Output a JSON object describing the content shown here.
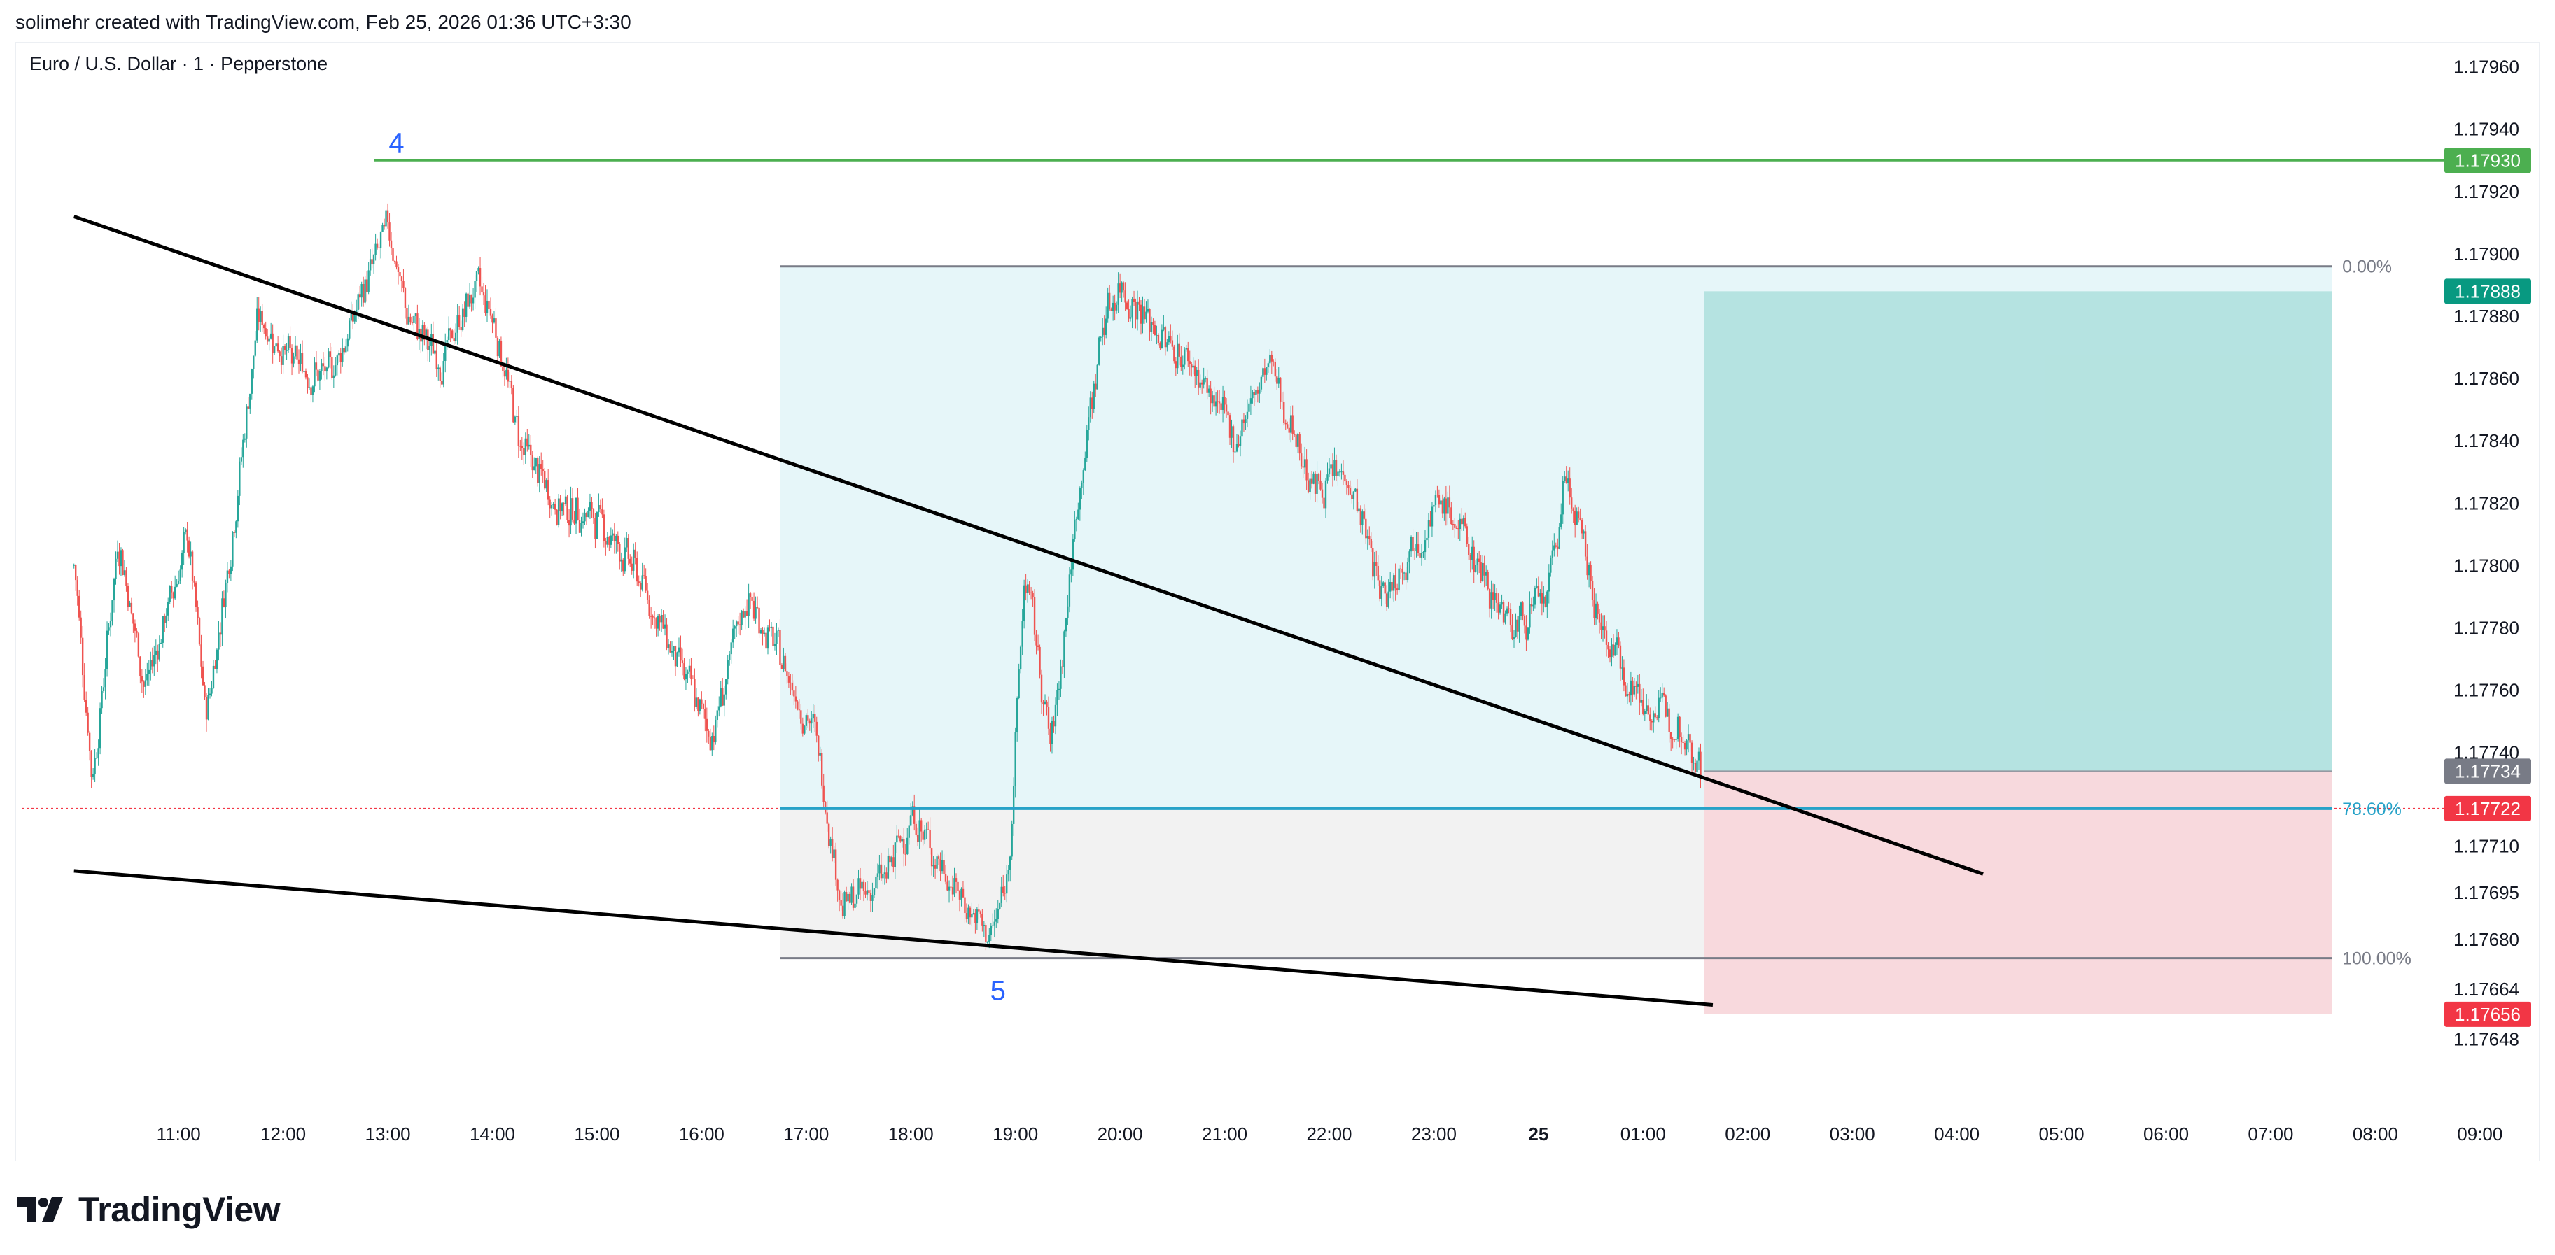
{
  "header": {
    "created_by": "solimehr created with TradingView.com, Feb 25, 2026 01:36 UTC+3:30"
  },
  "symbol": {
    "title": "Euro / U.S. Dollar · 1 · Pepperstone"
  },
  "footer": {
    "brand": "TradingView",
    "logo_icon": "tradingview-logo-icon"
  },
  "colors": {
    "up_candle": "#26a69a",
    "down_candle": "#ef5350",
    "target_zone": "#b2e2df",
    "stop_zone": "#f8d7db",
    "fib_upper_zone": "#e6f6f9",
    "fib_lower_zone": "#f2f2f2",
    "resistance_line": "#4caf50",
    "trendline": "#000000",
    "fib_786": "#26a2c8"
  },
  "chart_data": {
    "type": "candlestick",
    "symbol": "Euro / U.S. Dollar",
    "timeframe": "1",
    "broker": "Pepperstone",
    "y_axis": {
      "tick_labels": [
        "1.17960",
        "1.17940",
        "1.17920",
        "1.17900",
        "1.17880",
        "1.17860",
        "1.17840",
        "1.17820",
        "1.17800",
        "1.17780",
        "1.17760",
        "1.17740",
        "1.17710",
        "1.17695",
        "1.17680",
        "1.17664",
        "1.17648"
      ],
      "ylim": [
        1.17638,
        1.17968
      ]
    },
    "x_axis": {
      "tick_labels": [
        "11:00",
        "12:00",
        "13:00",
        "14:00",
        "15:00",
        "16:00",
        "17:00",
        "18:00",
        "19:00",
        "20:00",
        "21:00",
        "22:00",
        "23:00",
        "25",
        "01:00",
        "02:00",
        "03:00",
        "04:00",
        "05:00",
        "06:00",
        "07:00",
        "08:00",
        "09:00"
      ],
      "bold_label": "25"
    },
    "price_badges": [
      {
        "value": "1.17930",
        "color": "#4caf50"
      },
      {
        "value": "1.17888",
        "color": "#089981"
      },
      {
        "value": "1.17734",
        "color": "#787b86"
      },
      {
        "value": "1.17722",
        "color": "#f23645"
      },
      {
        "value": "1.17656",
        "color": "#f23645"
      }
    ],
    "horizontal_lines": [
      {
        "name": "resistance",
        "price": 1.1793,
        "color": "#4caf50"
      },
      {
        "name": "current-price",
        "price": 1.17722,
        "color": "#f23645",
        "style": "dotted"
      }
    ],
    "fibonacci": {
      "levels": [
        {
          "label": "0.00%",
          "price": 1.17896
        },
        {
          "label": "78.60%",
          "price": 1.17722
        },
        {
          "label": "100.00%",
          "price": 1.17674
        }
      ],
      "start_time": "16:45",
      "end_time": "07:35"
    },
    "position": {
      "type": "long",
      "entry": 1.17734,
      "target": 1.17888,
      "stop": 1.17656,
      "start_time": "01:35",
      "end_time": "07:35"
    },
    "wave_labels": [
      {
        "label": "4",
        "time": "13:05",
        "price": 1.1793
      },
      {
        "label": "5",
        "time": "18:50",
        "price": 1.17674
      }
    ],
    "trendlines": [
      {
        "name": "upper-trendline",
        "from": {
          "time": "10:00",
          "price": 1.17912
        },
        "to": {
          "time": "04:15",
          "price": 1.17701
        }
      },
      {
        "name": "lower-trendline",
        "from": {
          "time": "10:00",
          "price": 1.17702
        },
        "to": {
          "time": "01:40",
          "price": 1.17659
        }
      }
    ],
    "price_path": [
      {
        "time": "10:00",
        "price": 1.178
      },
      {
        "time": "10:10",
        "price": 1.1773
      },
      {
        "time": "10:25",
        "price": 1.1781
      },
      {
        "time": "10:40",
        "price": 1.1776
      },
      {
        "time": "11:05",
        "price": 1.1781
      },
      {
        "time": "11:15",
        "price": 1.1775
      },
      {
        "time": "11:30",
        "price": 1.1781
      },
      {
        "time": "11:45",
        "price": 1.1788
      },
      {
        "time": "12:05",
        "price": 1.17865
      },
      {
        "time": "12:25",
        "price": 1.1786
      },
      {
        "time": "12:40",
        "price": 1.1788
      },
      {
        "time": "13:00",
        "price": 1.1791
      },
      {
        "time": "13:10",
        "price": 1.1788
      },
      {
        "time": "13:30",
        "price": 1.17865
      },
      {
        "time": "13:50",
        "price": 1.1789
      },
      {
        "time": "14:00",
        "price": 1.1788
      },
      {
        "time": "14:15",
        "price": 1.1784
      },
      {
        "time": "14:35",
        "price": 1.1782
      },
      {
        "time": "15:00",
        "price": 1.17815
      },
      {
        "time": "15:20",
        "price": 1.178
      },
      {
        "time": "15:45",
        "price": 1.1777
      },
      {
        "time": "16:05",
        "price": 1.17745
      },
      {
        "time": "16:25",
        "price": 1.1779
      },
      {
        "time": "16:45",
        "price": 1.1777
      },
      {
        "time": "17:05",
        "price": 1.17745
      },
      {
        "time": "17:20",
        "price": 1.1769
      },
      {
        "time": "17:45",
        "price": 1.177
      },
      {
        "time": "18:00",
        "price": 1.1772
      },
      {
        "time": "18:20",
        "price": 1.177
      },
      {
        "time": "18:45",
        "price": 1.1768
      },
      {
        "time": "18:55",
        "price": 1.177
      },
      {
        "time": "19:05",
        "price": 1.178
      },
      {
        "time": "19:20",
        "price": 1.1774
      },
      {
        "time": "19:35",
        "price": 1.1782
      },
      {
        "time": "19:50",
        "price": 1.1788
      },
      {
        "time": "20:00",
        "price": 1.1789
      },
      {
        "time": "20:20",
        "price": 1.17875
      },
      {
        "time": "20:40",
        "price": 1.17865
      },
      {
        "time": "21:05",
        "price": 1.1784
      },
      {
        "time": "21:25",
        "price": 1.17865
      },
      {
        "time": "21:50",
        "price": 1.17825
      },
      {
        "time": "22:10",
        "price": 1.1783
      },
      {
        "time": "22:30",
        "price": 1.1779
      },
      {
        "time": "22:50",
        "price": 1.1781
      },
      {
        "time": "23:05",
        "price": 1.1782
      },
      {
        "time": "23:25",
        "price": 1.178
      },
      {
        "time": "23:45",
        "price": 1.1778
      },
      {
        "time": "00:05",
        "price": 1.1779
      },
      {
        "time": "00:15",
        "price": 1.1783
      },
      {
        "time": "00:35",
        "price": 1.1778
      },
      {
        "time": "01:00",
        "price": 1.17755
      },
      {
        "time": "01:20",
        "price": 1.1775
      },
      {
        "time": "01:33",
        "price": 1.17735
      }
    ]
  }
}
